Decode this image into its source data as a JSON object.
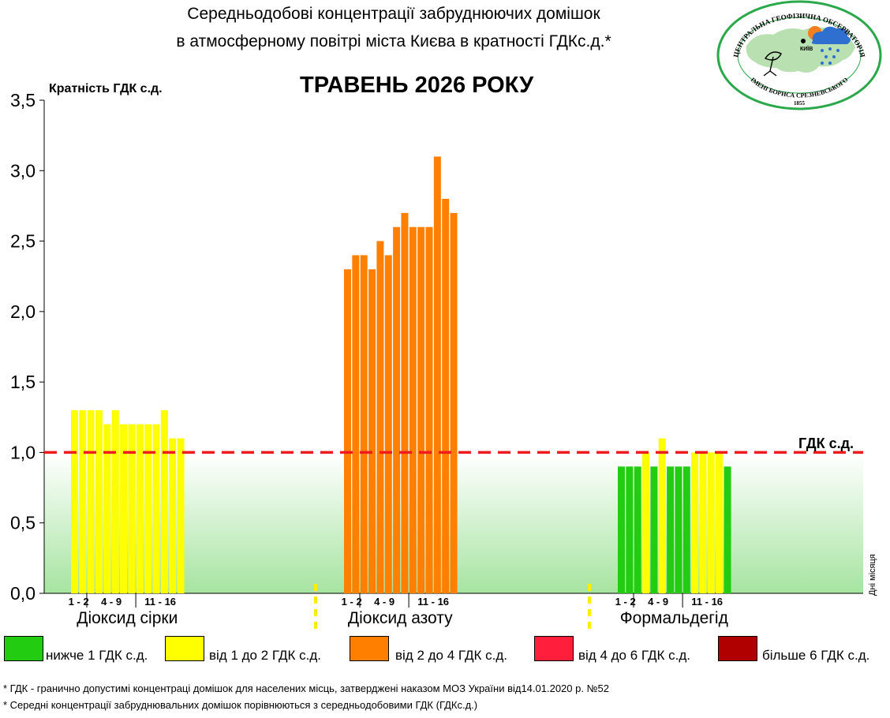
{
  "title_line1": "Середньодобові концентрації забруднюючих домішок",
  "title_line2": "в атмосферному повітрі міста Києва в кратності ГДКс.д.*",
  "month_title": "ТРАВЕНЬ 2026 РОКУ",
  "threshold_label": "ГДК с.д.",
  "days_label": "Дні місяця",
  "logo": {
    "ring_text_top": "ЦЕНТРАЛЬНА ГЕОФІЗИЧНА ОБСЕРВАТОРІЯ",
    "ring_text_bottom": "ІМЕНІ БОРИСА СРЕЗНЕВСЬКОГО",
    "city": "КИЇВ",
    "year": "1855",
    "colors": {
      "ring": "#2aa84a",
      "map": "#b8e0b0",
      "cloud": "#2f6fd0",
      "sun": "#f08020"
    }
  },
  "legend": [
    {
      "label": "нижче 1 ГДК с.д.",
      "color": "#22cc11"
    },
    {
      "label": "від 1 до 2 ГДК с.д.",
      "color": "#ffff00"
    },
    {
      "label": "від 2 до 4 ГДК с.д.",
      "color": "#ff7f00"
    },
    {
      "label": "від 4 до 6 ГДК с.д.",
      "color": "#ff1f3c"
    },
    {
      "label": "більше 6 ГДК с.д.",
      "color": "#b00000"
    }
  ],
  "footnotes": [
    "* ГДК - гранично допустимі концентраці домішок для населених місць, затверджені наказом МОЗ України від14.01.2020 р. №52",
    "* Середні концентрації забруднювальних домішок порівнюються з середньодобовими  ГДК (ГДКс.д.)"
  ],
  "chart_data": {
    "type": "bar",
    "ylabel": "Кратність ГДК с.д.",
    "xlabel": "Дні місяця",
    "ylim": [
      0,
      3.5
    ],
    "yticks": [
      "0,0",
      "0,5",
      "1,0",
      "1,5",
      "2,0",
      "2,5",
      "3,0",
      "3,5"
    ],
    "threshold": 1.0,
    "threshold_label": "ГДК с.д.",
    "groups": [
      {
        "name": "Діоксид сірки",
        "day_labels": [
          "1 - 2",
          "4 - 9",
          "11 - 16"
        ],
        "days": [
          1,
          2,
          4,
          5,
          6,
          7,
          8,
          9,
          11,
          12,
          13,
          14,
          15,
          16
        ],
        "values": [
          1.3,
          1.3,
          1.3,
          1.3,
          1.2,
          1.3,
          1.2,
          1.2,
          1.2,
          1.2,
          1.2,
          1.3,
          1.1,
          1.1
        ]
      },
      {
        "name": "Діоксид азоту",
        "day_labels": [
          "1 - 2",
          "4 - 9",
          "11 - 16"
        ],
        "days": [
          1,
          2,
          4,
          5,
          6,
          7,
          8,
          9,
          11,
          12,
          13,
          14,
          15,
          16
        ],
        "values": [
          2.3,
          2.4,
          2.4,
          2.3,
          2.5,
          2.4,
          2.6,
          2.7,
          2.6,
          2.6,
          2.6,
          3.1,
          2.8,
          2.7
        ]
      },
      {
        "name": "Формальдегід",
        "day_labels": [
          "1 - 2",
          "4 - 9",
          "11 - 16"
        ],
        "days": [
          1,
          2,
          4,
          5,
          6,
          7,
          8,
          9,
          11,
          12,
          13,
          14,
          15,
          16
        ],
        "values": [
          0.9,
          0.9,
          0.9,
          1.0,
          0.9,
          1.1,
          0.9,
          0.9,
          0.9,
          1.0,
          1.0,
          1.0,
          1.0,
          0.9
        ]
      }
    ]
  }
}
